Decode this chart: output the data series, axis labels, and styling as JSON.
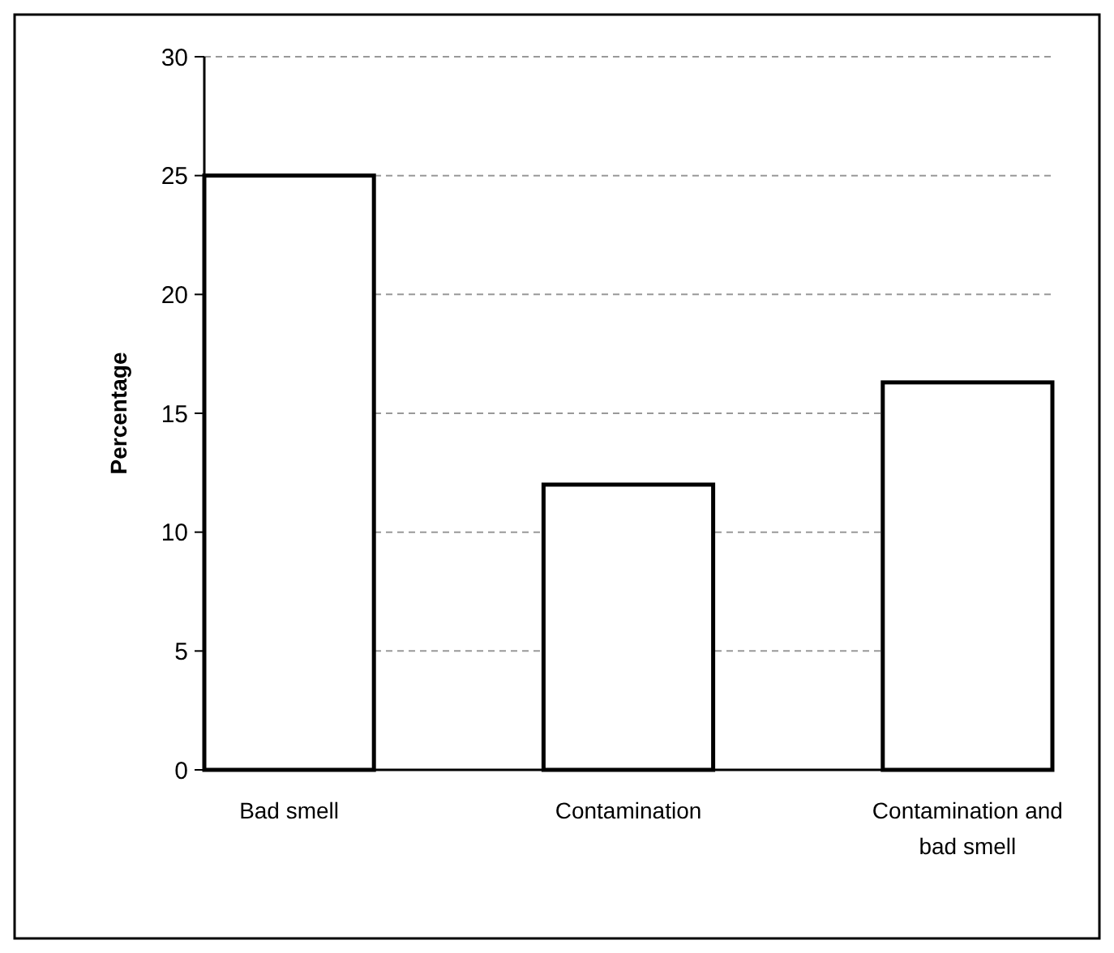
{
  "chart_data": {
    "type": "bar",
    "ylabel": "Percentage",
    "categories": [
      "Bad smell",
      "Contamination",
      "Contamination and bad smell"
    ],
    "values": [
      25,
      12,
      16.3
    ],
    "color": "#ffffff",
    "ylim": [
      0,
      30
    ],
    "yticks": [
      0,
      5,
      10,
      15,
      20,
      25,
      30
    ],
    "grid": "y"
  }
}
